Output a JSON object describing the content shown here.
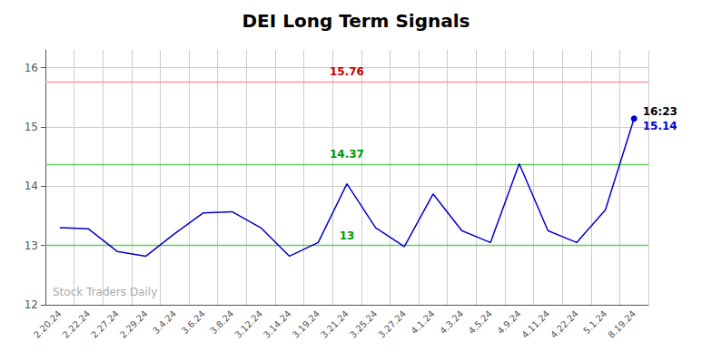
{
  "chart_data": {
    "type": "line",
    "title": "DEI Long Term Signals",
    "categories": [
      "2.20.24",
      "2.22.24",
      "2.27.24",
      "2.29.24",
      "3.4.24",
      "3.6.24",
      "3.8.24",
      "3.12.24",
      "3.14.24",
      "3.19.24",
      "3.21.24",
      "3.25.24",
      "3.27.24",
      "4.1.24",
      "4.3.24",
      "4.5.24",
      "4.9.24",
      "4.11.24",
      "4.22.24",
      "5.1.24",
      "8.19.24"
    ],
    "values": [
      13.3,
      13.28,
      12.9,
      12.82,
      13.2,
      13.55,
      13.57,
      13.3,
      12.82,
      13.05,
      14.04,
      13.3,
      12.98,
      13.87,
      13.25,
      13.05,
      14.38,
      13.25,
      13.05,
      13.6,
      15.14
    ],
    "color": "#0000cc",
    "marker": "circle",
    "hlines": [
      {
        "value": 15.76,
        "label": "15.76",
        "color": "#ff9999",
        "text_color": "#cc0000"
      },
      {
        "value": 14.37,
        "label": "14.37",
        "color": "#66cc66",
        "text_color": "#009900"
      },
      {
        "value": 13,
        "label": "13",
        "color": "#66cc66",
        "text_color": "#009900"
      }
    ],
    "last_point_labels": [
      {
        "text": "16:23",
        "color": "#000000"
      },
      {
        "text": "15.14",
        "color": "#0000cc"
      }
    ],
    "watermark": {
      "text": "Stock Traders Daily",
      "color": "#aaaaaa"
    },
    "background": "#ffffff",
    "grid_color": "#cccccc",
    "ylim": [
      12.0,
      16.3
    ],
    "yticks": [
      12,
      13,
      14,
      15,
      16
    ],
    "grid": true
  }
}
